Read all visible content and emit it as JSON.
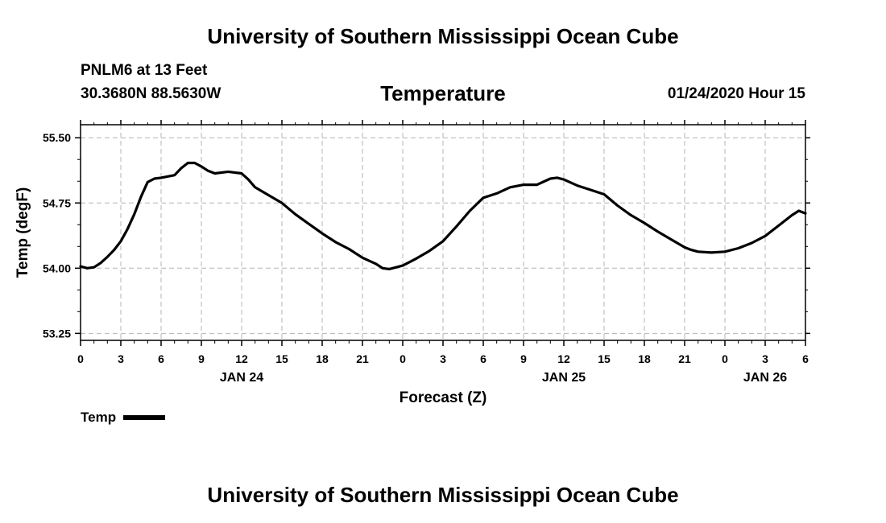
{
  "header": {
    "title": "University of Southern Mississippi Ocean Cube",
    "station": "PNLM6 at 13 Feet",
    "coords": "30.3680N 88.5630W",
    "chart_title": "Temperature",
    "datetime": "01/24/2020 Hour 15"
  },
  "footer": {
    "title": "University of Southern Mississippi Ocean Cube"
  },
  "legend": {
    "label": "Temp",
    "color": "#000000"
  },
  "chart_data": {
    "type": "line",
    "title": "Temperature",
    "xlabel": "Forecast (Z)",
    "ylabel": "Temp (degF)",
    "xlim": [
      0,
      54
    ],
    "ylim": [
      53.17,
      55.65
    ],
    "y_ticks": [
      53.25,
      54.0,
      54.75,
      55.5
    ],
    "y_tick_labels": [
      "53.25",
      "54.00",
      "54.75",
      "55.50"
    ],
    "x_ticks": [
      0,
      3,
      6,
      9,
      12,
      15,
      18,
      21,
      24,
      27,
      30,
      33,
      36,
      39,
      42,
      45,
      48,
      51,
      54
    ],
    "x_tick_labels": [
      "0",
      "3",
      "6",
      "9",
      "12",
      "15",
      "18",
      "21",
      "0",
      "3",
      "6",
      "9",
      "12",
      "15",
      "18",
      "21",
      "0",
      "3",
      "6"
    ],
    "date_labels": [
      {
        "hour": 12,
        "label": "JAN 24"
      },
      {
        "hour": 36,
        "label": "JAN 25"
      },
      {
        "hour": 51,
        "label": "JAN 26"
      }
    ],
    "grid": true,
    "series": [
      {
        "name": "Temp",
        "color": "#000000",
        "x": [
          0,
          0.5,
          1,
          1.5,
          2,
          2.5,
          3,
          3.5,
          4,
          4.5,
          5,
          5.5,
          6,
          7,
          7.5,
          8,
          8.5,
          9,
          9.5,
          10,
          11,
          12,
          12.5,
          13,
          14,
          15,
          16,
          17,
          18,
          19,
          20,
          21,
          22,
          22.5,
          23,
          24,
          25,
          26,
          27,
          28,
          29,
          30,
          31,
          32,
          33,
          34,
          35,
          35.5,
          36,
          37,
          38,
          39,
          40,
          41,
          42,
          43,
          44,
          45,
          45.5,
          46,
          47,
          48,
          49,
          50,
          51,
          52,
          53,
          53.5,
          54
        ],
        "values": [
          54.02,
          54.0,
          54.01,
          54.06,
          54.13,
          54.21,
          54.31,
          54.45,
          54.62,
          54.82,
          54.99,
          55.03,
          55.04,
          55.07,
          55.15,
          55.21,
          55.21,
          55.17,
          55.12,
          55.09,
          55.11,
          55.09,
          55.02,
          54.93,
          54.84,
          54.75,
          54.62,
          54.51,
          54.4,
          54.3,
          54.22,
          54.12,
          54.05,
          54.0,
          53.99,
          54.03,
          54.11,
          54.2,
          54.31,
          54.48,
          54.66,
          54.81,
          54.86,
          54.93,
          54.96,
          54.96,
          55.03,
          55.04,
          55.02,
          54.95,
          54.9,
          54.85,
          54.72,
          54.61,
          54.52,
          54.42,
          54.33,
          54.24,
          54.21,
          54.19,
          54.18,
          54.19,
          54.23,
          54.29,
          54.37,
          54.49,
          54.61,
          54.66,
          54.63
        ]
      }
    ]
  }
}
